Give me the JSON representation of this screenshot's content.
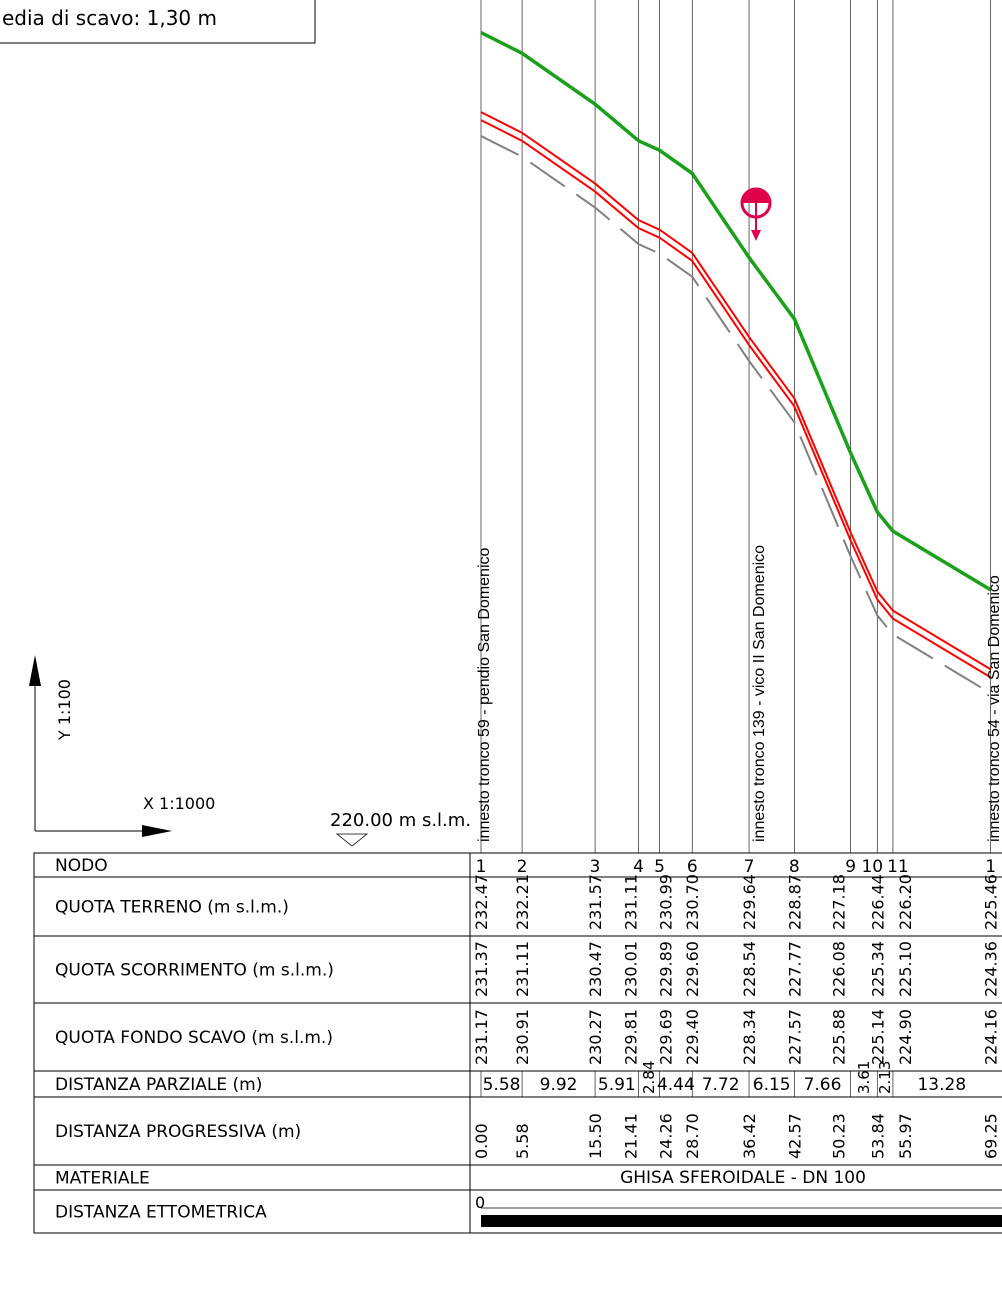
{
  "note": "edia di scavo: 1,30 m",
  "scale": {
    "y": "Y 1:100",
    "x": "X 1:1000"
  },
  "datum": "220.00 m s.l.m.",
  "junctions": [
    "innesto tronco 59 - pendio San Domenico",
    "innesto tronco 139 - vico II San Domenico",
    "innesto tronco 54 - via San Domenico"
  ],
  "table": {
    "row_labels": [
      "NODO",
      "QUOTA TERRENO (m s.l.m.)",
      "QUOTA SCORRIMENTO (m s.l.m.)",
      "QUOTA FONDO SCAVO (m s.l.m.)",
      "DISTANZA PARZIALE (m)",
      "DISTANZA PROGRESSIVA (m)",
      "MATERIALE",
      "DISTANZA ETTOMETRICA"
    ],
    "nodes": [
      "1",
      "2",
      "3",
      "4",
      "5",
      "6",
      "7",
      "8",
      "9",
      "10",
      "11",
      "1"
    ],
    "quota_terreno": [
      "232.47",
      "232.21",
      "231.57",
      "231.11",
      "230.99",
      "230.70",
      "229.64",
      "228.87",
      "227.18",
      "226.44",
      "226.20",
      "225.46"
    ],
    "quota_scorrimento": [
      "231.37",
      "231.11",
      "230.47",
      "230.01",
      "229.89",
      "229.60",
      "228.54",
      "227.77",
      "226.08",
      "225.34",
      "225.10",
      "224.36"
    ],
    "quota_fondo_scavo": [
      "231.17",
      "230.91",
      "230.27",
      "229.81",
      "229.69",
      "229.40",
      "228.34",
      "227.57",
      "225.88",
      "225.14",
      "224.90",
      "224.16"
    ],
    "distanza_parziale": [
      "5.58",
      "9.92",
      "5.91",
      "2.84",
      "4.44",
      "7.72",
      "6.15",
      "7.66",
      "3.61",
      "2.13",
      "13.28"
    ],
    "distanza_progressiva": [
      "0.00",
      "5.58",
      "15.50",
      "21.41",
      "24.26",
      "28.70",
      "36.42",
      "42.57",
      "50.23",
      "53.84",
      "55.97",
      "69.25"
    ],
    "materiale": "GHISA SFEROIDALE - DN 100",
    "distanza_ettometrica": "0"
  },
  "colors": {
    "terrain": "#1aa01a",
    "pipe": "#ff0000",
    "excavation": "#808080",
    "valve": "#e0004a"
  }
}
